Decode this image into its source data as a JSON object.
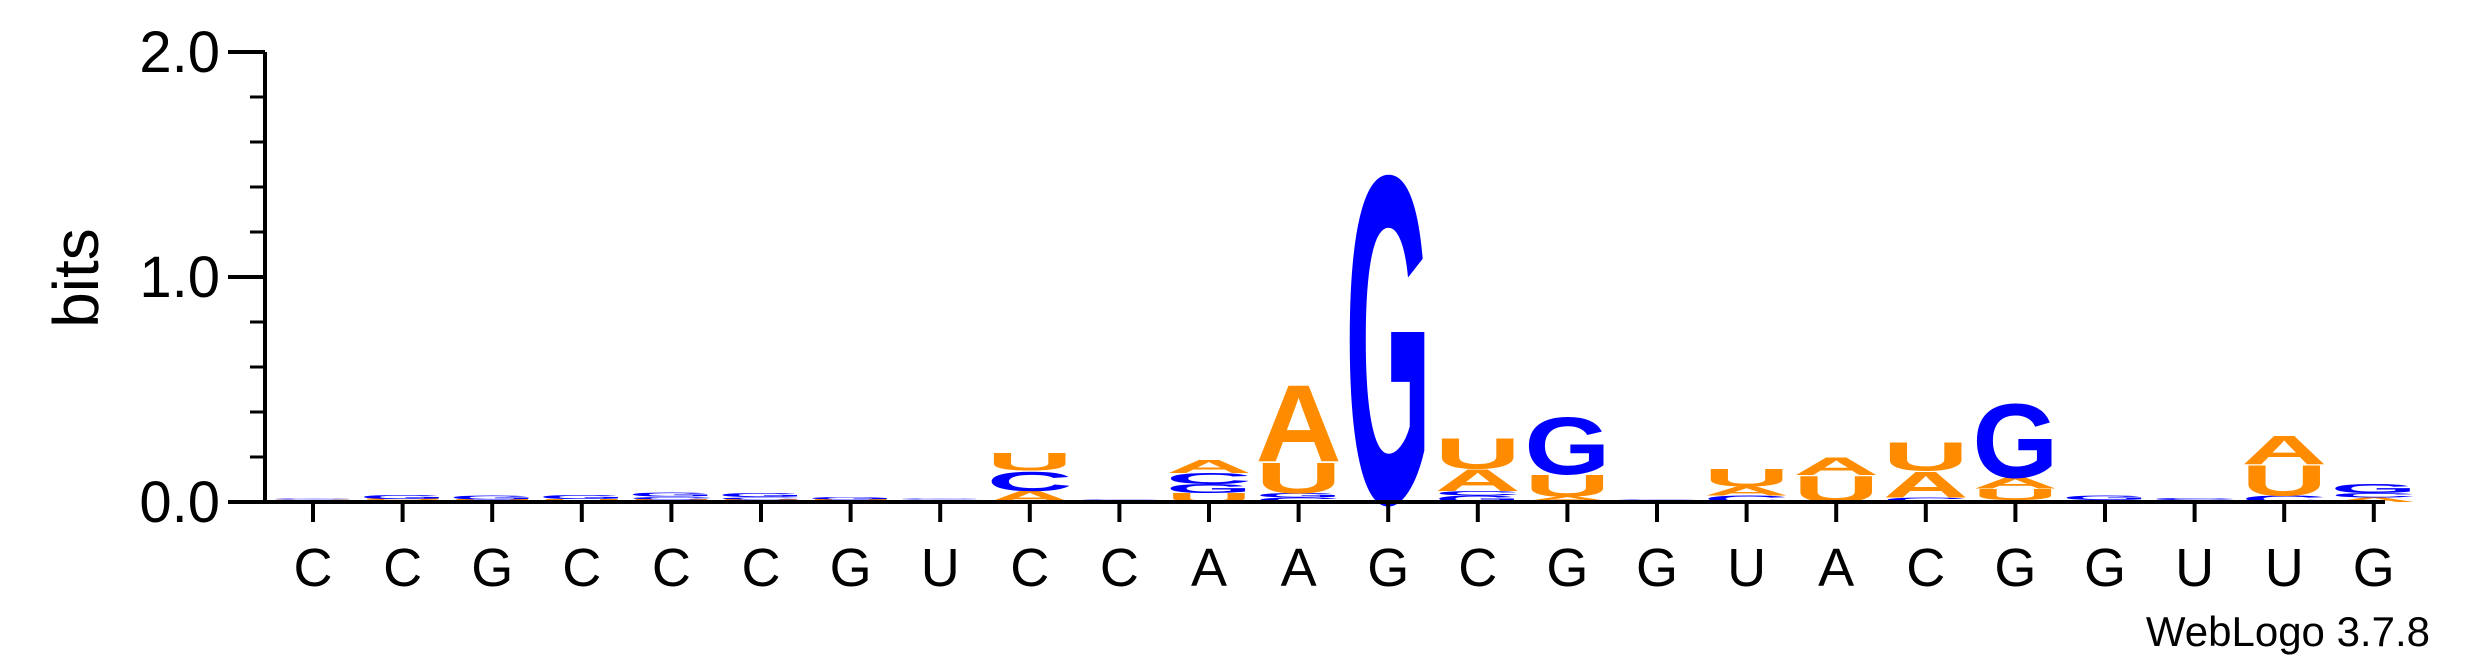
{
  "chart_data": {
    "type": "sequence-logo",
    "ylabel": "bits",
    "ylim": [
      0,
      2
    ],
    "yticks": [
      "0.0",
      "1.0",
      "2.0"
    ],
    "credit": "WebLogo 3.7.8",
    "colors": {
      "A": "#ff8c00",
      "U": "#ff8c00",
      "G": "#0000ff",
      "C": "#0000ff"
    },
    "positions": [
      {
        "label": "C",
        "stack": [
          [
            "A",
            0.005
          ],
          [
            "U",
            0.005
          ],
          [
            "C",
            0.004
          ],
          [
            "G",
            0.003
          ]
        ]
      },
      {
        "label": "C",
        "stack": [
          [
            "A",
            0.008
          ],
          [
            "U",
            0.006
          ],
          [
            "G",
            0.018
          ]
        ]
      },
      {
        "label": "G",
        "stack": [
          [
            "A",
            0.006
          ],
          [
            "U",
            0.006
          ],
          [
            "G",
            0.018
          ]
        ]
      },
      {
        "label": "C",
        "stack": [
          [
            "A",
            0.007
          ],
          [
            "U",
            0.007
          ],
          [
            "G",
            0.018
          ]
        ]
      },
      {
        "label": "C",
        "stack": [
          [
            "A",
            0.006
          ],
          [
            "U",
            0.006
          ],
          [
            "C",
            0.012
          ],
          [
            "G",
            0.016
          ]
        ]
      },
      {
        "label": "C",
        "stack": [
          [
            "A",
            0.006
          ],
          [
            "U",
            0.006
          ],
          [
            "C",
            0.01
          ],
          [
            "G",
            0.016
          ]
        ]
      },
      {
        "label": "G",
        "stack": [
          [
            "A",
            0.006
          ],
          [
            "U",
            0.006
          ],
          [
            "G",
            0.012
          ]
        ]
      },
      {
        "label": "U",
        "stack": [
          [
            "A",
            0.005
          ],
          [
            "U",
            0.004
          ],
          [
            "C",
            0.004
          ],
          [
            "G",
            0.003
          ]
        ]
      },
      {
        "label": "C",
        "stack": [
          [
            "A",
            0.05
          ],
          [
            "C",
            0.09
          ],
          [
            "U",
            0.08
          ]
        ]
      },
      {
        "label": "C",
        "stack": [
          [
            "A",
            0.004
          ],
          [
            "U",
            0.004
          ],
          [
            "C",
            0.003
          ]
        ]
      },
      {
        "label": "A",
        "stack": [
          [
            "U",
            0.04
          ],
          [
            "G",
            0.04
          ],
          [
            "C",
            0.05
          ],
          [
            "A",
            0.06
          ]
        ]
      },
      {
        "label": "A",
        "stack": [
          [
            "C",
            0.02
          ],
          [
            "G",
            0.02
          ],
          [
            "U",
            0.14
          ],
          [
            "A",
            0.35
          ]
        ]
      },
      {
        "label": "G",
        "stack": [
          [
            "G",
            1.5
          ]
        ]
      },
      {
        "label": "C",
        "stack": [
          [
            "G",
            0.03
          ],
          [
            "C",
            0.02
          ],
          [
            "A",
            0.1
          ],
          [
            "U",
            0.14
          ]
        ]
      },
      {
        "label": "G",
        "stack": [
          [
            "C",
            0.005
          ],
          [
            "A",
            0.02
          ],
          [
            "U",
            0.1
          ],
          [
            "G",
            0.26
          ]
        ]
      },
      {
        "label": "G",
        "stack": [
          [
            "A",
            0.004
          ],
          [
            "U",
            0.004
          ],
          [
            "C",
            0.003
          ]
        ]
      },
      {
        "label": "U",
        "stack": [
          [
            "C",
            0.03
          ],
          [
            "A",
            0.04
          ],
          [
            "U",
            0.08
          ]
        ]
      },
      {
        "label": "A",
        "stack": [
          [
            "U",
            0.12
          ],
          [
            "A",
            0.08
          ]
        ]
      },
      {
        "label": "C",
        "stack": [
          [
            "C",
            0.02
          ],
          [
            "A",
            0.12
          ],
          [
            "U",
            0.13
          ]
        ]
      },
      {
        "label": "G",
        "stack": [
          [
            "C",
            0.01
          ],
          [
            "U",
            0.05
          ],
          [
            "A",
            0.05
          ],
          [
            "G",
            0.34
          ]
        ]
      },
      {
        "label": "G",
        "stack": [
          [
            "C",
            0.01
          ],
          [
            "G",
            0.02
          ]
        ]
      },
      {
        "label": "U",
        "stack": [
          [
            "G",
            0.01
          ],
          [
            "C",
            0.01
          ]
        ]
      },
      {
        "label": "U",
        "stack": [
          [
            "C",
            0.03
          ],
          [
            "U",
            0.14
          ],
          [
            "A",
            0.13
          ]
        ]
      },
      {
        "label": "G",
        "stack": [
          [
            "A",
            0.02
          ],
          [
            "C",
            0.02
          ],
          [
            "G",
            0.04
          ]
        ]
      }
    ]
  }
}
